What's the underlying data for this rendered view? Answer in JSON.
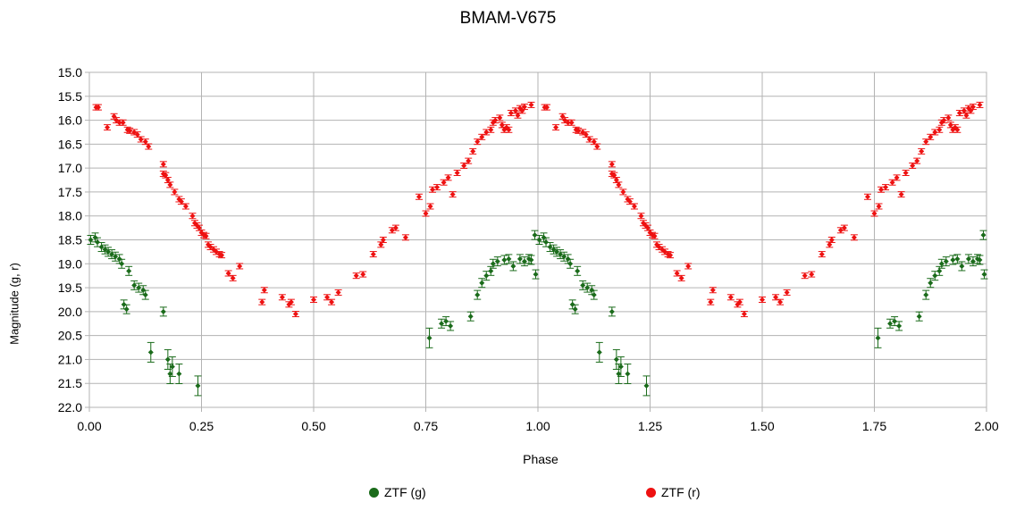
{
  "chart_data": {
    "type": "scatter",
    "title": "BMAM-V675",
    "xlabel": "Phase",
    "ylabel": "Magnitude (g, r)",
    "xlim": [
      0,
      2
    ],
    "ylim": [
      15,
      22
    ],
    "y_inverted": true,
    "grid": true,
    "legend_position": "bottom",
    "x_ticks": [
      "0.00",
      "0.25",
      "0.50",
      "0.75",
      "1.00",
      "1.25",
      "1.50",
      "1.75",
      "2.00"
    ],
    "y_ticks": [
      "15.0",
      "15.5",
      "16.0",
      "16.5",
      "17.0",
      "17.5",
      "18.0",
      "18.5",
      "19.0",
      "19.5",
      "20.0",
      "20.5",
      "21.0",
      "21.5",
      "22.0"
    ],
    "period_repeat": 1.0,
    "series": [
      {
        "name": "ZTF (g)",
        "color": "#1a6b1a",
        "x": [
          0.003,
          0.013,
          0.018,
          0.027,
          0.035,
          0.042,
          0.05,
          0.058,
          0.067,
          0.072,
          0.077,
          0.083,
          0.088,
          0.1,
          0.11,
          0.12,
          0.125,
          0.137,
          0.165,
          0.175,
          0.18,
          0.185,
          0.2,
          0.242,
          0.758,
          0.785,
          0.795,
          0.805,
          0.85,
          0.865,
          0.875,
          0.885,
          0.895,
          0.9,
          0.91,
          0.925,
          0.935,
          0.945,
          0.96,
          0.97,
          0.98,
          0.985,
          0.993,
          0.995
        ],
        "y": [
          18.5,
          18.45,
          18.55,
          18.65,
          18.7,
          18.75,
          18.8,
          18.85,
          18.9,
          19.0,
          19.85,
          19.95,
          19.15,
          19.45,
          19.5,
          19.55,
          19.65,
          20.85,
          20.0,
          21.0,
          21.3,
          21.15,
          21.3,
          21.55,
          20.55,
          20.25,
          20.2,
          20.3,
          20.1,
          19.65,
          19.4,
          19.25,
          19.15,
          19.0,
          18.95,
          18.92,
          18.9,
          19.05,
          18.9,
          18.95,
          18.9,
          18.92,
          18.4,
          19.22
        ]
      },
      {
        "name": "ZTF (r)",
        "color": "#ee1111",
        "x": [
          0.015,
          0.02,
          0.04,
          0.055,
          0.06,
          0.067,
          0.075,
          0.085,
          0.09,
          0.1,
          0.107,
          0.115,
          0.125,
          0.132,
          0.165,
          0.165,
          0.17,
          0.175,
          0.18,
          0.19,
          0.2,
          0.205,
          0.215,
          0.23,
          0.235,
          0.24,
          0.245,
          0.25,
          0.255,
          0.26,
          0.265,
          0.27,
          0.277,
          0.283,
          0.29,
          0.295,
          0.31,
          0.32,
          0.335,
          0.385,
          0.39,
          0.43,
          0.445,
          0.45,
          0.46,
          0.5,
          0.53,
          0.54,
          0.555,
          0.595,
          0.61,
          0.633,
          0.65,
          0.655,
          0.675,
          0.683,
          0.705,
          0.735,
          0.75,
          0.76,
          0.765,
          0.775,
          0.79,
          0.8,
          0.81,
          0.82,
          0.835,
          0.845,
          0.855,
          0.865,
          0.875,
          0.885,
          0.895,
          0.9,
          0.905,
          0.915,
          0.92,
          0.925,
          0.93,
          0.935,
          0.94,
          0.95,
          0.955,
          0.96,
          0.965,
          0.97,
          0.985
        ],
        "y": [
          15.73,
          15.73,
          16.15,
          15.92,
          16.0,
          16.05,
          16.05,
          16.2,
          16.22,
          16.25,
          16.3,
          16.4,
          16.45,
          16.55,
          16.92,
          17.12,
          17.15,
          17.25,
          17.35,
          17.5,
          17.65,
          17.7,
          17.8,
          18.0,
          18.15,
          18.2,
          18.25,
          18.35,
          18.4,
          18.42,
          18.6,
          18.65,
          18.7,
          18.75,
          18.8,
          18.82,
          19.2,
          19.3,
          19.05,
          19.8,
          19.55,
          19.7,
          19.85,
          19.8,
          20.05,
          19.75,
          19.7,
          19.8,
          19.6,
          19.25,
          19.22,
          18.8,
          18.6,
          18.5,
          18.3,
          18.25,
          18.45,
          17.6,
          17.95,
          17.8,
          17.45,
          17.4,
          17.3,
          17.2,
          17.55,
          17.1,
          16.95,
          16.85,
          16.65,
          16.45,
          16.35,
          16.25,
          16.2,
          16.05,
          16.0,
          15.95,
          16.1,
          16.2,
          16.15,
          16.2,
          15.85,
          15.8,
          15.9,
          15.75,
          15.8,
          15.72,
          15.68
        ]
      }
    ]
  }
}
